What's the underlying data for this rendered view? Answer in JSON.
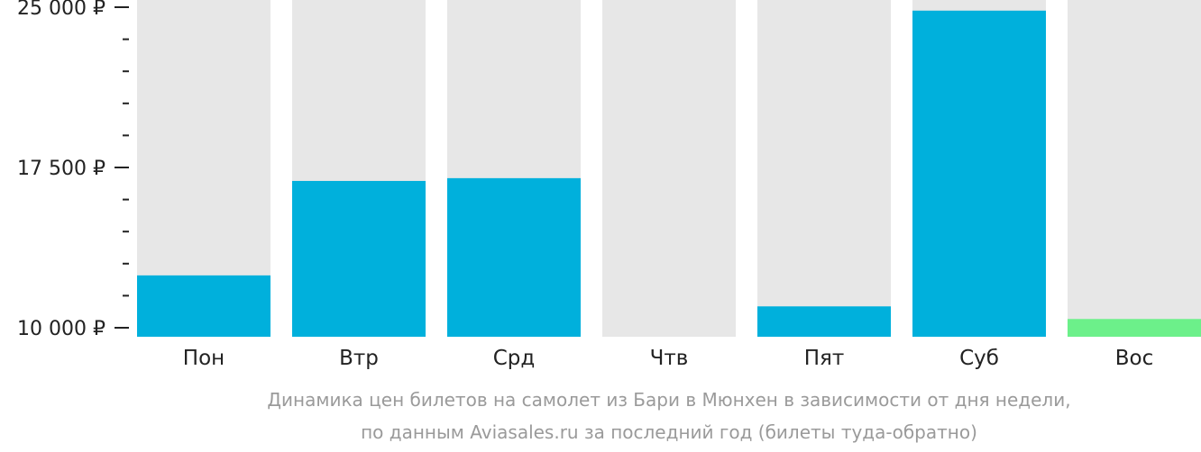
{
  "chart_data": {
    "type": "bar",
    "categories": [
      "Пон",
      "Втр",
      "Срд",
      "Чтв",
      "Пят",
      "Суб",
      "Вос"
    ],
    "values": [
      12450,
      16870,
      17000,
      null,
      11000,
      24840,
      10410
    ],
    "ylim": [
      10000,
      25000
    ],
    "y_ticks": [
      {
        "value": 10000,
        "label": "10 000 ₽"
      },
      {
        "value": 17500,
        "label": "17 500 ₽"
      },
      {
        "value": 25000,
        "label": "25 000 ₽"
      }
    ],
    "minor_tick_step": 1500,
    "bar_color": "#00b0dc",
    "cheapest_color": "#6cf08a",
    "cheapest_category": "Вос",
    "background_bar_color": "#e7e7e7",
    "grid": false,
    "caption": [
      "Динамика цен билетов на самолет из Бари в Мюнхен в зависимости от дня недели,",
      "по данным Aviasales.ru за последний год (билеты туда-обратно)"
    ]
  }
}
